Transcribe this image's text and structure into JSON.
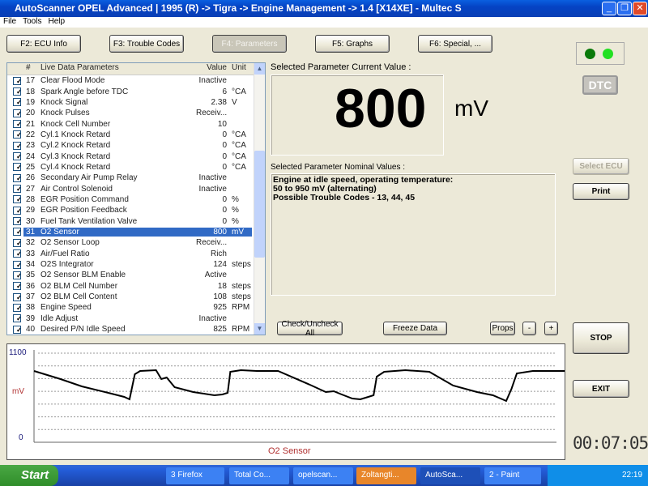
{
  "window": {
    "title": "AutoScanner OPEL Advanced | 1995 (R) -> Tigra -> Engine Management -> 1.4 [X14XE]  - Multec S"
  },
  "menu": [
    "File",
    "Tools",
    "Help"
  ],
  "tabs": [
    "F2:  ECU Info",
    "F3:  Trouble Codes",
    "F4:  Parameters",
    "F5:  Graphs",
    "F6: Special, ..."
  ],
  "list": {
    "headers": [
      "#",
      "Live Data Parameters",
      "Value",
      "Unit"
    ],
    "rows": [
      [
        "17",
        "Clear Flood Mode",
        "Inactive",
        ""
      ],
      [
        "18",
        "Spark Angle before TDC",
        "6",
        "°CA"
      ],
      [
        "19",
        "Knock Signal",
        "2.38",
        "V"
      ],
      [
        "20",
        "Knock Pulses",
        "Receiv...",
        ""
      ],
      [
        "21",
        "Knock Cell Number",
        "10",
        ""
      ],
      [
        "22",
        "Cyl.1 Knock Retard",
        "0",
        "°CA"
      ],
      [
        "23",
        "Cyl.2 Knock Retard",
        "0",
        "°CA"
      ],
      [
        "24",
        "Cyl.3 Knock Retard",
        "0",
        "°CA"
      ],
      [
        "25",
        "Cyl.4 Knock Retard",
        "0",
        "°CA"
      ],
      [
        "26",
        "Secondary Air Pump Relay",
        "Inactive",
        ""
      ],
      [
        "27",
        "Air Control Solenoid",
        "Inactive",
        ""
      ],
      [
        "28",
        "EGR Position Command",
        "0",
        "%"
      ],
      [
        "29",
        "EGR Position Feedback",
        "0",
        "%"
      ],
      [
        "30",
        "Fuel Tank Ventilation Valve",
        "0",
        "%"
      ],
      [
        "31",
        "O2 Sensor",
        "800",
        "mV"
      ],
      [
        "32",
        "O2 Sensor Loop",
        "Receiv...",
        ""
      ],
      [
        "33",
        "Air/Fuel Ratio",
        "Rich",
        ""
      ],
      [
        "34",
        "O2S Integrator",
        "124",
        "steps"
      ],
      [
        "35",
        "O2 Sensor BLM Enable",
        "Active",
        ""
      ],
      [
        "36",
        "O2 BLM Cell Number",
        "18",
        "steps"
      ],
      [
        "37",
        "O2 BLM Cell Content",
        "108",
        "steps"
      ],
      [
        "38",
        "Engine Speed",
        "925",
        "RPM"
      ],
      [
        "39",
        "Idle Adjust",
        "Inactive",
        ""
      ],
      [
        "40",
        "Desired P/N Idle Speed",
        "825",
        "RPM"
      ]
    ],
    "selected_index": 14
  },
  "current": {
    "label": "Selected Parameter Current Value :",
    "value": "800",
    "unit": "mV"
  },
  "nominal": {
    "label": "Selected Parameter Nominal Values :",
    "lines": [
      "Engine at idle speed, operating temperature:",
      "50 to 950 mV (alternating)",
      "Possible Trouble Codes - 13, 44, 45"
    ]
  },
  "buttons": {
    "dtc": "DTC",
    "select_ecu": "Select ECU",
    "print": "Print",
    "check": "Check/Uncheck All",
    "freeze": "Freeze Data",
    "props": "Props",
    "minus": "-",
    "plus": "+",
    "stop": "STOP",
    "exit": "EXIT"
  },
  "timer": "00:07:05",
  "colors": {
    "led": "#22c322",
    "selected": "#316ac5",
    "graph_label": "#b03030"
  },
  "chart_data": {
    "type": "line",
    "title": "O2 Sensor",
    "ylabel": "mV",
    "ylim": [
      0,
      1100
    ],
    "yticks": [
      "1100",
      "0"
    ],
    "grid": true,
    "points": [
      [
        0,
        880
      ],
      [
        5,
        780
      ],
      [
        9,
        690
      ],
      [
        14,
        610
      ],
      [
        17,
        560
      ],
      [
        18,
        530
      ],
      [
        18.1,
        560
      ],
      [
        19,
        840
      ],
      [
        20,
        880
      ],
      [
        23,
        890
      ],
      [
        24,
        780
      ],
      [
        25,
        800
      ],
      [
        26.5,
        680
      ],
      [
        30,
        620
      ],
      [
        34,
        580
      ],
      [
        35.5,
        590
      ],
      [
        36.5,
        610
      ],
      [
        37,
        870
      ],
      [
        39,
        890
      ],
      [
        42,
        880
      ],
      [
        46,
        880
      ],
      [
        52,
        710
      ],
      [
        55,
        620
      ],
      [
        56.5,
        630
      ],
      [
        58,
        590
      ],
      [
        60,
        540
      ],
      [
        61.5,
        530
      ],
      [
        63,
        560
      ],
      [
        64,
        580
      ],
      [
        64.6,
        810
      ],
      [
        66,
        870
      ],
      [
        70,
        890
      ],
      [
        74.5,
        870
      ],
      [
        79,
        700
      ],
      [
        83.5,
        620
      ],
      [
        86.5,
        580
      ],
      [
        89,
        510
      ],
      [
        90,
        660
      ],
      [
        91,
        850
      ],
      [
        94,
        880
      ],
      [
        100,
        880
      ]
    ]
  },
  "taskbar": {
    "start": "Start",
    "items": [
      "3 Firefox",
      "Total Co...",
      "opelscan...",
      "Zoltangti...",
      "AutoSca...",
      "2 - Paint"
    ],
    "clock": "22:19"
  }
}
